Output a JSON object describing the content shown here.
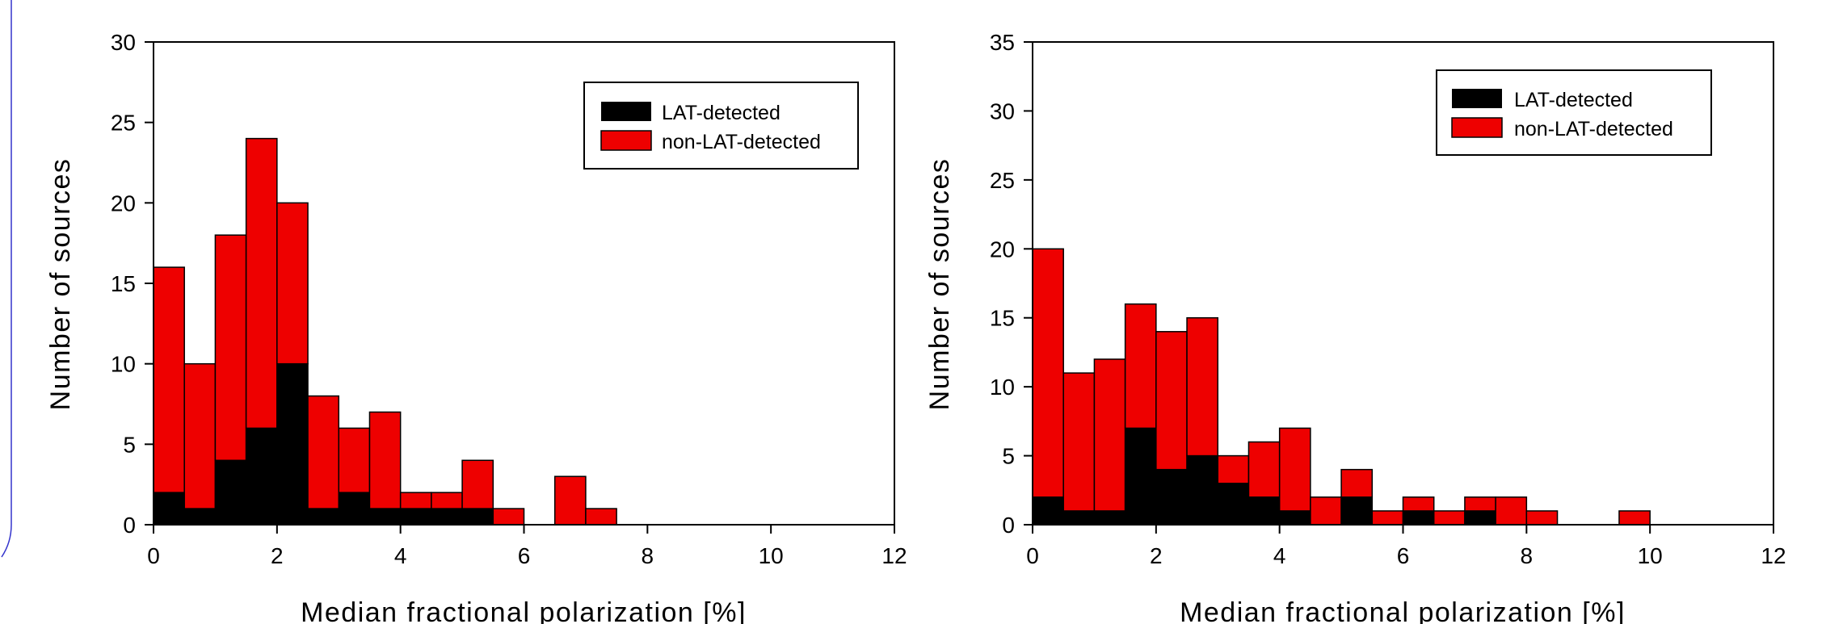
{
  "colors": {
    "lat": "#000000",
    "nonlat": "#ee0000",
    "decor": "#3333cc"
  },
  "chart_data": [
    {
      "type": "bar",
      "stacked": true,
      "bin_width": 0.5,
      "x": [
        0.25,
        0.75,
        1.25,
        1.75,
        2.25,
        2.75,
        3.25,
        3.75,
        4.25,
        4.75,
        5.25,
        5.75,
        6.25,
        6.75,
        7.25
      ],
      "series": [
        {
          "name": "LAT-detected",
          "color": "#000000",
          "values": [
            2,
            1,
            4,
            6,
            10,
            1,
            2,
            1,
            1,
            1,
            1,
            0,
            0,
            0,
            0
          ]
        },
        {
          "name": "non-LAT-detected",
          "color": "#ee0000",
          "values": [
            14,
            9,
            14,
            18,
            10,
            7,
            4,
            6,
            1,
            1,
            3,
            1,
            0,
            3,
            1
          ]
        }
      ],
      "totals": [
        16,
        10,
        18,
        24,
        20,
        8,
        6,
        7,
        2,
        2,
        4,
        1,
        0,
        3,
        1
      ],
      "xlabel": "Median fractional polarization [%]",
      "ylabel": "Number of sources",
      "xlim": [
        0,
        12
      ],
      "ylim": [
        0,
        30
      ],
      "xticks": [
        0,
        2,
        4,
        6,
        8,
        10,
        12
      ],
      "yticks": [
        0,
        5,
        10,
        15,
        20,
        25,
        30
      ],
      "legend": {
        "position": "top-right",
        "entries": [
          "LAT-detected",
          "non-LAT-detected"
        ]
      },
      "grid": false
    },
    {
      "type": "bar",
      "stacked": true,
      "bin_width": 0.5,
      "x": [
        0.25,
        0.75,
        1.25,
        1.75,
        2.25,
        2.75,
        3.25,
        3.75,
        4.25,
        4.75,
        5.25,
        5.75,
        6.25,
        6.75,
        7.25,
        7.75,
        8.25,
        9.75
      ],
      "series": [
        {
          "name": "LAT-detected",
          "color": "#000000",
          "values": [
            2,
            1,
            1,
            7,
            4,
            5,
            3,
            2,
            1,
            0,
            2,
            0,
            1,
            0,
            1,
            0,
            0,
            0
          ]
        },
        {
          "name": "non-LAT-detected",
          "color": "#ee0000",
          "values": [
            18,
            10,
            11,
            9,
            10,
            10,
            2,
            4,
            6,
            2,
            2,
            1,
            1,
            1,
            1,
            2,
            1,
            1
          ]
        }
      ],
      "totals": [
        20,
        11,
        12,
        16,
        14,
        15,
        5,
        6,
        7,
        2,
        4,
        1,
        2,
        1,
        2,
        2,
        1,
        1
      ],
      "xlabel": "Median fractional polarization [%]",
      "ylabel": "Number of sources",
      "xlim": [
        0,
        12
      ],
      "ylim": [
        0,
        35
      ],
      "xticks": [
        0,
        2,
        4,
        6,
        8,
        10,
        12
      ],
      "yticks": [
        0,
        5,
        10,
        15,
        20,
        25,
        30,
        35
      ],
      "legend": {
        "position": "top-right",
        "entries": [
          "LAT-detected",
          "non-LAT-detected"
        ]
      },
      "grid": false
    }
  ]
}
